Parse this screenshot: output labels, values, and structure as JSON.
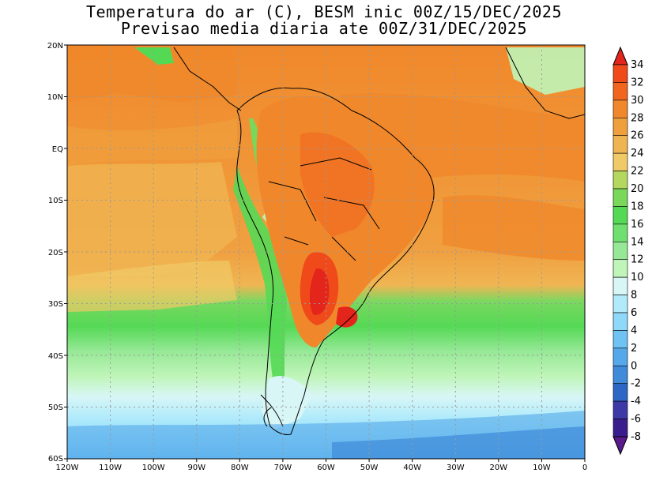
{
  "title": {
    "line1": "Temperatura do ar (C), BESM inic 00Z/15/DEC/2025",
    "line2": "Previsao media diaria ate 00Z/31/DEC/2025"
  },
  "map": {
    "lat_labels": [
      "20N",
      "10N",
      "EQ",
      "10S",
      "20S",
      "30S",
      "40S",
      "50S",
      "60S"
    ],
    "lon_labels": [
      "120W",
      "110W",
      "100W",
      "90W",
      "80W",
      "70W",
      "60W",
      "50W",
      "40W",
      "30W",
      "20W",
      "10W",
      "0"
    ],
    "region": "South America"
  },
  "colorbar": {
    "unit": "C",
    "labels": [
      "34",
      "32",
      "30",
      "28",
      "26",
      "24",
      "22",
      "20",
      "18",
      "16",
      "14",
      "12",
      "10",
      "8",
      "6",
      "4",
      "2",
      "0",
      "-2",
      "-4",
      "-6",
      "-8"
    ],
    "colors": [
      "#e3251b",
      "#f04a1a",
      "#f2651f",
      "#f0882b",
      "#efa03d",
      "#f0b553",
      "#f0ca66",
      "#b4d760",
      "#79d75a",
      "#55d955",
      "#6fe06f",
      "#96e896",
      "#bff5b8",
      "#d8f6f6",
      "#b1ebfb",
      "#8ed8fa",
      "#6fc3f4",
      "#55a8ea",
      "#3f8ad9",
      "#2d66c4",
      "#3d3aa8",
      "#3a1d8c",
      "#5a1a8a"
    ]
  }
}
